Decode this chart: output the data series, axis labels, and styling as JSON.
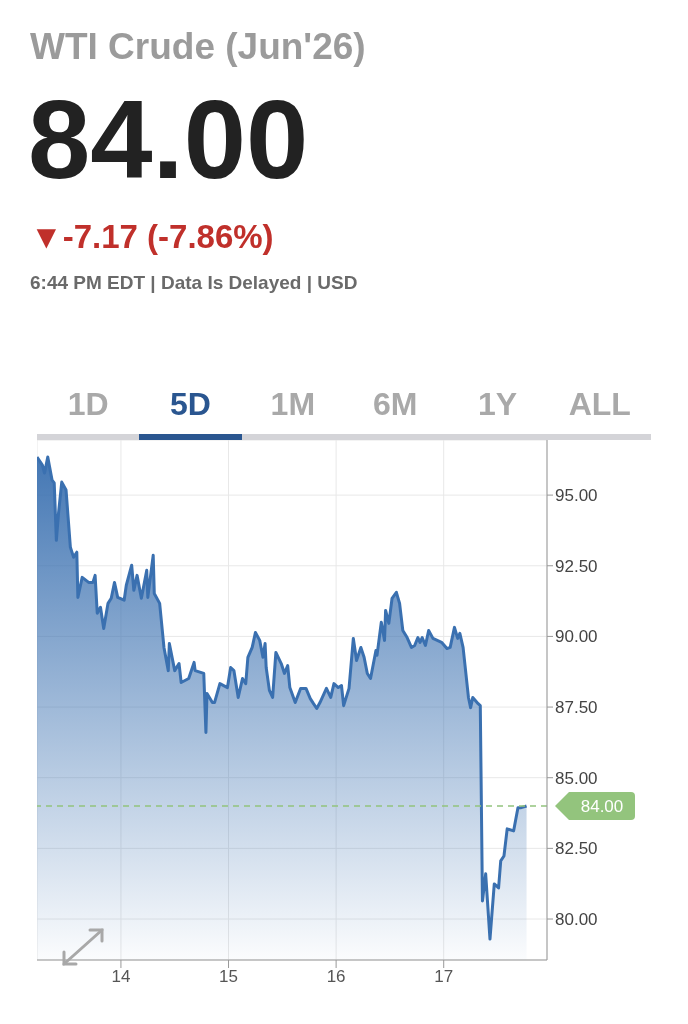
{
  "chart_data": {
    "type": "area",
    "title": "WTI Crude (Jun'26)",
    "subtitle": "84.00",
    "annotations": [
      "▼-7.17 (-7.86%)",
      "6:44 PM EDT | Data Is Delayed | USD",
      "1D",
      "5D",
      "1M",
      "6M",
      "1Y",
      "ALL"
    ],
    "x": [
      13.22,
      13.27,
      13.29,
      13.32,
      13.36,
      13.38,
      13.4,
      13.42,
      13.45,
      13.49,
      13.53,
      13.56,
      13.59,
      13.6,
      13.64,
      13.7,
      13.74,
      13.76,
      13.78,
      13.81,
      13.84,
      13.88,
      13.91,
      13.94,
      13.97,
      14.03,
      14.05,
      14.1,
      14.12,
      14.15,
      14.19,
      14.24,
      14.25,
      14.3,
      14.31,
      14.36,
      14.4,
      14.44,
      14.45,
      14.5,
      14.54,
      14.56,
      14.63,
      14.68,
      14.69,
      14.77,
      14.79,
      14.8,
      14.85,
      14.87,
      14.92,
      14.99,
      15.02,
      15.05,
      15.09,
      15.13,
      15.16,
      15.18,
      15.22,
      15.25,
      15.29,
      15.32,
      15.34,
      15.35,
      15.38,
      15.41,
      15.44,
      15.49,
      15.52,
      15.55,
      15.57,
      15.62,
      15.67,
      15.72,
      15.76,
      15.79,
      15.82,
      15.85,
      15.91,
      15.95,
      15.98,
      16.02,
      16.05,
      16.07,
      16.12,
      16.16,
      16.19,
      16.23,
      16.26,
      16.29,
      16.32,
      16.37,
      16.38,
      16.42,
      16.45,
      16.46,
      16.49,
      16.52,
      16.56,
      16.59,
      16.62,
      16.66,
      16.7,
      16.73,
      16.76,
      16.78,
      16.8,
      16.83,
      16.86,
      16.9,
      16.98,
      17.03,
      17.06,
      17.1,
      17.13,
      17.15,
      17.18,
      17.23,
      17.25,
      17.27,
      17.32,
      17.34,
      17.36,
      17.39,
      17.43,
      17.47,
      17.51,
      17.53,
      17.56,
      17.59,
      17.65,
      17.69,
      17.72,
      17.77
    ],
    "series": [
      {
        "color": "#3a70b0",
        "values": [
          96.35,
          96.06,
          95.78,
          96.35,
          95.53,
          95.43,
          93.4,
          94.36,
          95.46,
          95.18,
          93.16,
          92.8,
          92.98,
          91.38,
          92.09,
          91.91,
          91.91,
          92.16,
          90.82,
          91.03,
          90.28,
          91.17,
          91.35,
          91.91,
          91.38,
          91.28,
          91.81,
          92.52,
          91.63,
          92.16,
          91.35,
          92.34,
          91.38,
          92.87,
          91.52,
          91.17,
          89.61,
          88.79,
          89.75,
          88.79,
          89.04,
          88.37,
          88.51,
          89.08,
          88.79,
          88.69,
          86.6,
          87.98,
          87.66,
          87.66,
          88.33,
          88.19,
          88.9,
          88.79,
          87.84,
          88.51,
          88.33,
          89.26,
          89.61,
          90.14,
          89.86,
          89.26,
          89.75,
          88.9,
          88.09,
          87.84,
          89.43,
          89.04,
          88.69,
          88.97,
          88.19,
          87.66,
          88.16,
          88.16,
          87.8,
          87.62,
          87.45,
          87.66,
          88.16,
          87.84,
          88.33,
          88.19,
          88.26,
          87.55,
          88.16,
          89.93,
          89.15,
          89.61,
          89.26,
          88.69,
          88.51,
          89.5,
          89.33,
          90.5,
          89.86,
          90.92,
          90.46,
          91.35,
          91.56,
          91.17,
          90.21,
          89.96,
          89.61,
          89.68,
          89.96,
          89.79,
          89.96,
          89.68,
          90.21,
          89.93,
          89.79,
          89.57,
          89.61,
          90.32,
          89.93,
          90.11,
          89.61,
          87.84,
          87.48,
          87.84,
          87.62,
          87.55,
          80.64,
          81.6,
          79.29,
          81.24,
          81.1,
          82.06,
          82.23,
          83.19,
          83.12,
          83.94,
          83.94,
          84.0
        ]
      }
    ],
    "xlim": [
      13.22,
      17.96
    ],
    "xticks": [
      14,
      15,
      16,
      17
    ],
    "ylim": [
      78.55,
      96.95
    ],
    "yticks": [
      {
        "value": 80,
        "label": "80.00"
      },
      {
        "value": 82.5,
        "label": "82.50"
      },
      {
        "value": 85,
        "label": "85.00"
      },
      {
        "value": 87.5,
        "label": "87.50"
      },
      {
        "value": 90,
        "label": "90.00"
      },
      {
        "value": 92.5,
        "label": "92.50"
      },
      {
        "value": 95,
        "label": "95.00"
      }
    ],
    "grid": true,
    "ref_lines": [
      {
        "axis": "y",
        "value": 84,
        "label": "84.00",
        "color": "#93c47d",
        "line_style": "dashed"
      }
    ]
  }
}
